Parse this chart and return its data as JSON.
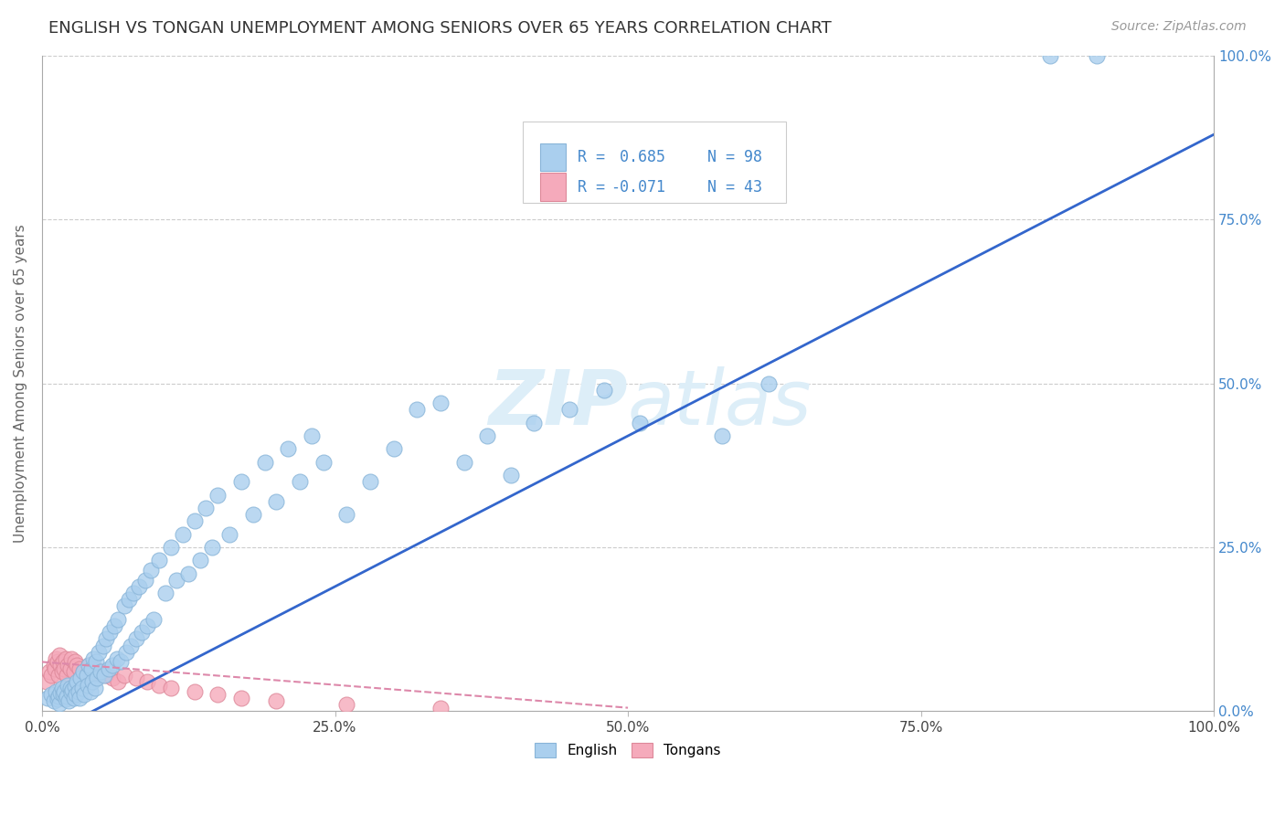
{
  "title": "ENGLISH VS TONGAN UNEMPLOYMENT AMONG SENIORS OVER 65 YEARS CORRELATION CHART",
  "source": "Source: ZipAtlas.com",
  "ylabel": "Unemployment Among Seniors over 65 years",
  "xlim": [
    0,
    1
  ],
  "ylim": [
    0,
    1
  ],
  "xticks": [
    0,
    0.25,
    0.5,
    0.75,
    1.0
  ],
  "yticks": [
    0,
    0.25,
    0.5,
    0.75,
    1.0
  ],
  "xticklabels": [
    "0.0%",
    "25.0%",
    "50.0%",
    "75.0%",
    "100.0%"
  ],
  "yticklabels": [
    "0.0%",
    "25.0%",
    "50.0%",
    "75.0%",
    "100.0%"
  ],
  "legend_line1": "R =  0.685  N = 98",
  "legend_line2": "R = -0.071  N = 43",
  "english_color": "#aacfee",
  "tongan_color": "#f5aabb",
  "english_edge": "#88b4d8",
  "tongan_edge": "#dd8899",
  "blue_line_color": "#3366cc",
  "pink_line_color": "#dd88aa",
  "watermark_color": "#ddeef8",
  "title_color": "#333333",
  "axis_label_color": "#666666",
  "blue_text_color": "#4488cc",
  "grid_color": "#cccccc",
  "english_scatter_x": [
    0.005,
    0.008,
    0.01,
    0.012,
    0.013,
    0.014,
    0.015,
    0.016,
    0.017,
    0.018,
    0.019,
    0.02,
    0.021,
    0.022,
    0.023,
    0.024,
    0.025,
    0.026,
    0.027,
    0.028,
    0.029,
    0.03,
    0.031,
    0.032,
    0.033,
    0.034,
    0.035,
    0.036,
    0.038,
    0.039,
    0.04,
    0.041,
    0.042,
    0.043,
    0.044,
    0.045,
    0.046,
    0.047,
    0.048,
    0.05,
    0.052,
    0.053,
    0.055,
    0.057,
    0.058,
    0.06,
    0.062,
    0.064,
    0.065,
    0.067,
    0.07,
    0.072,
    0.074,
    0.076,
    0.078,
    0.08,
    0.083,
    0.085,
    0.088,
    0.09,
    0.093,
    0.095,
    0.1,
    0.105,
    0.11,
    0.115,
    0.12,
    0.125,
    0.13,
    0.135,
    0.14,
    0.145,
    0.15,
    0.16,
    0.17,
    0.18,
    0.19,
    0.2,
    0.21,
    0.22,
    0.23,
    0.24,
    0.26,
    0.28,
    0.3,
    0.32,
    0.34,
    0.36,
    0.38,
    0.4,
    0.42,
    0.45,
    0.48,
    0.51,
    0.58,
    0.62,
    0.86,
    0.9
  ],
  "english_scatter_y": [
    0.02,
    0.025,
    0.015,
    0.03,
    0.018,
    0.022,
    0.012,
    0.028,
    0.035,
    0.025,
    0.03,
    0.018,
    0.022,
    0.04,
    0.015,
    0.035,
    0.028,
    0.032,
    0.02,
    0.038,
    0.025,
    0.045,
    0.03,
    0.02,
    0.05,
    0.035,
    0.06,
    0.025,
    0.055,
    0.04,
    0.07,
    0.03,
    0.065,
    0.045,
    0.08,
    0.035,
    0.075,
    0.05,
    0.09,
    0.06,
    0.1,
    0.055,
    0.11,
    0.065,
    0.12,
    0.07,
    0.13,
    0.08,
    0.14,
    0.075,
    0.16,
    0.09,
    0.17,
    0.1,
    0.18,
    0.11,
    0.19,
    0.12,
    0.2,
    0.13,
    0.215,
    0.14,
    0.23,
    0.18,
    0.25,
    0.2,
    0.27,
    0.21,
    0.29,
    0.23,
    0.31,
    0.25,
    0.33,
    0.27,
    0.35,
    0.3,
    0.38,
    0.32,
    0.4,
    0.35,
    0.42,
    0.38,
    0.3,
    0.35,
    0.4,
    0.46,
    0.47,
    0.38,
    0.42,
    0.36,
    0.44,
    0.46,
    0.49,
    0.44,
    0.42,
    0.5,
    1.0,
    1.0
  ],
  "tongan_scatter_x": [
    0.004,
    0.006,
    0.008,
    0.01,
    0.011,
    0.012,
    0.013,
    0.014,
    0.015,
    0.016,
    0.017,
    0.018,
    0.019,
    0.02,
    0.021,
    0.022,
    0.024,
    0.025,
    0.027,
    0.028,
    0.03,
    0.032,
    0.035,
    0.038,
    0.04,
    0.042,
    0.045,
    0.048,
    0.05,
    0.055,
    0.06,
    0.065,
    0.07,
    0.08,
    0.09,
    0.1,
    0.11,
    0.13,
    0.15,
    0.17,
    0.2,
    0.26,
    0.34
  ],
  "tongan_scatter_y": [
    0.045,
    0.06,
    0.055,
    0.07,
    0.065,
    0.08,
    0.075,
    0.055,
    0.085,
    0.07,
    0.06,
    0.075,
    0.065,
    0.08,
    0.055,
    0.07,
    0.065,
    0.08,
    0.06,
    0.075,
    0.07,
    0.065,
    0.06,
    0.055,
    0.07,
    0.06,
    0.065,
    0.055,
    0.06,
    0.055,
    0.05,
    0.045,
    0.055,
    0.05,
    0.045,
    0.04,
    0.035,
    0.03,
    0.025,
    0.02,
    0.015,
    0.01,
    0.005
  ],
  "blue_line_x": [
    0.0,
    1.0
  ],
  "blue_line_y": [
    -0.04,
    0.88
  ],
  "pink_line_x": [
    0.0,
    0.5
  ],
  "pink_line_y": [
    0.075,
    0.005
  ]
}
